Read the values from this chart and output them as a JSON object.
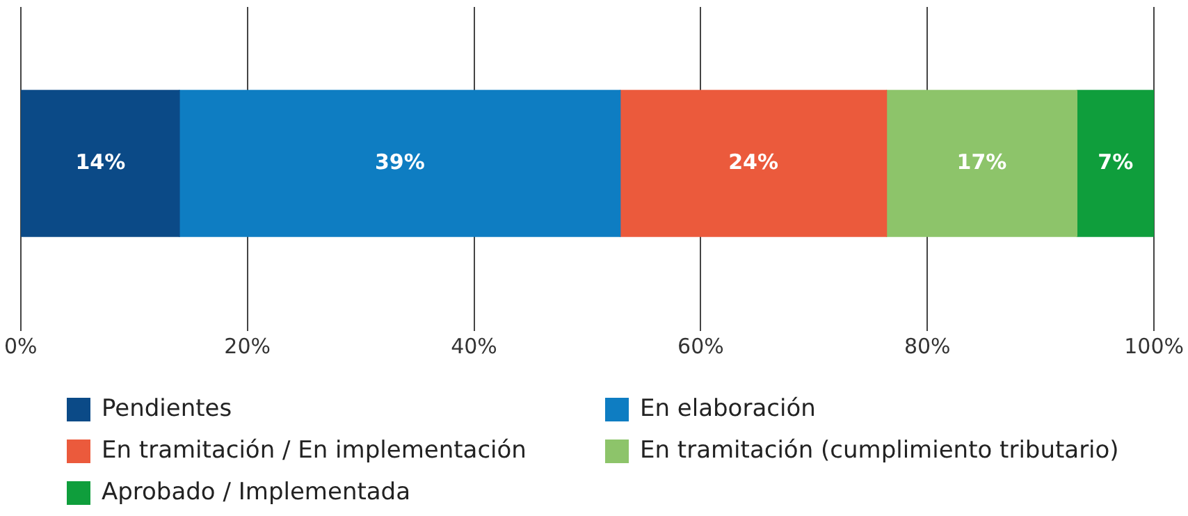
{
  "chart_data": {
    "type": "bar",
    "orientation": "horizontal",
    "stacked": true,
    "categories": [
      null
    ],
    "series": [
      {
        "name": "Pendientes",
        "color": "#0b4a87",
        "values": [
          14
        ],
        "value_labels": [
          "14%"
        ]
      },
      {
        "name": "En elaboración",
        "color": "#0e7dc2",
        "values": [
          38.9
        ],
        "value_labels": [
          "39%"
        ]
      },
      {
        "name": "En tramitación / En implementación",
        "color": "#eb5a3c",
        "values": [
          23.5
        ],
        "value_labels": [
          "24%"
        ]
      },
      {
        "name": "En tramitación (cumplimiento tributario)",
        "color": "#8dc46a",
        "values": [
          16.8
        ],
        "value_labels": [
          "17%"
        ]
      },
      {
        "name": "Aprobado / Implementada",
        "color": "#0f9e3c",
        "values": [
          6.8
        ],
        "value_labels": [
          "7%"
        ]
      }
    ],
    "xlim": [
      0,
      100
    ],
    "xticks": [
      {
        "value": 0,
        "label": "0%"
      },
      {
        "value": 20,
        "label": "20%"
      },
      {
        "value": 40,
        "label": "40%"
      },
      {
        "value": 60,
        "label": "60%"
      },
      {
        "value": 80,
        "label": "80%"
      },
      {
        "value": 100,
        "label": "100%"
      }
    ],
    "grid": "x",
    "legend": "bottom"
  }
}
